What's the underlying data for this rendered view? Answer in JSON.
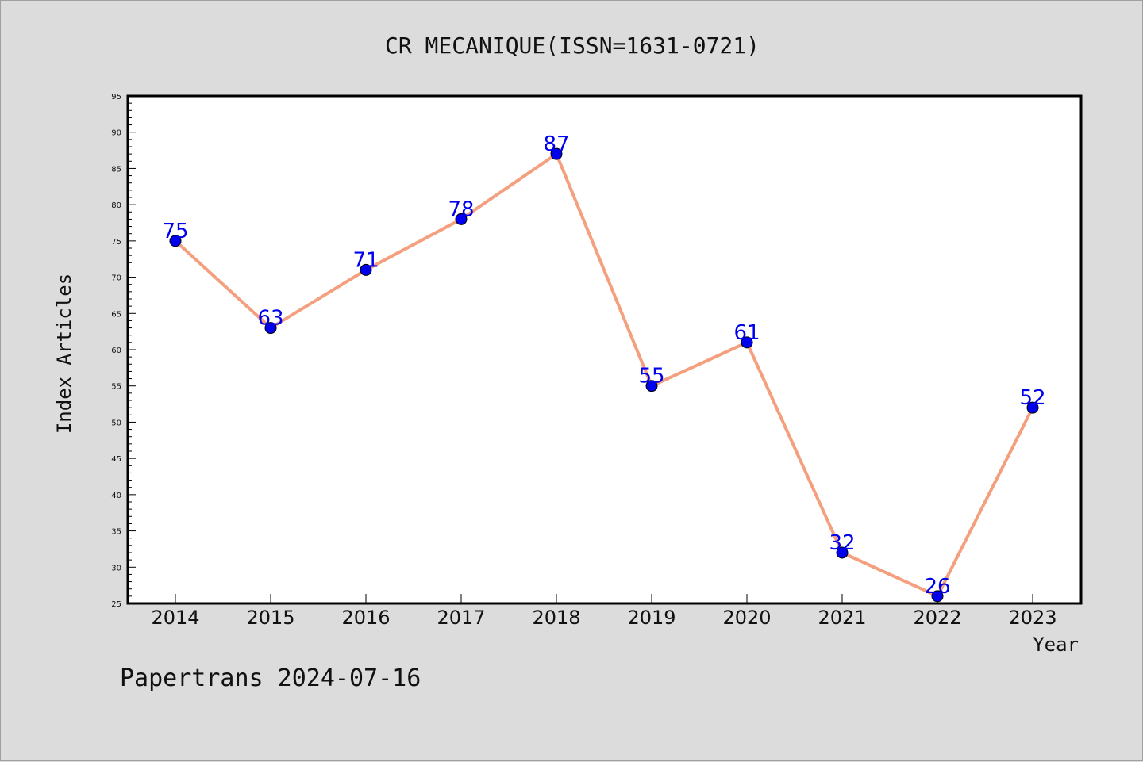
{
  "chart_data": {
    "type": "line",
    "title": "CR MECANIQUE(ISSN=1631-0721)",
    "xlabel": "Year",
    "ylabel": "Index Articles",
    "categories": [
      "2014",
      "2015",
      "2016",
      "2017",
      "2018",
      "2019",
      "2020",
      "2021",
      "2022",
      "2023"
    ],
    "series": [
      {
        "values": [
          75,
          63,
          71,
          78,
          87,
          55,
          61,
          32,
          26,
          52
        ]
      }
    ],
    "ylim": [
      25,
      95
    ],
    "yticks": [
      25,
      30,
      35,
      40,
      45,
      50,
      55,
      60,
      65,
      70,
      75,
      80,
      85,
      90,
      95
    ],
    "grid": false,
    "line_color": "#f4a07f",
    "marker_color": "#0000ee",
    "label_color": "#0000ee"
  },
  "footer": "Papertrans 2024-07-16"
}
